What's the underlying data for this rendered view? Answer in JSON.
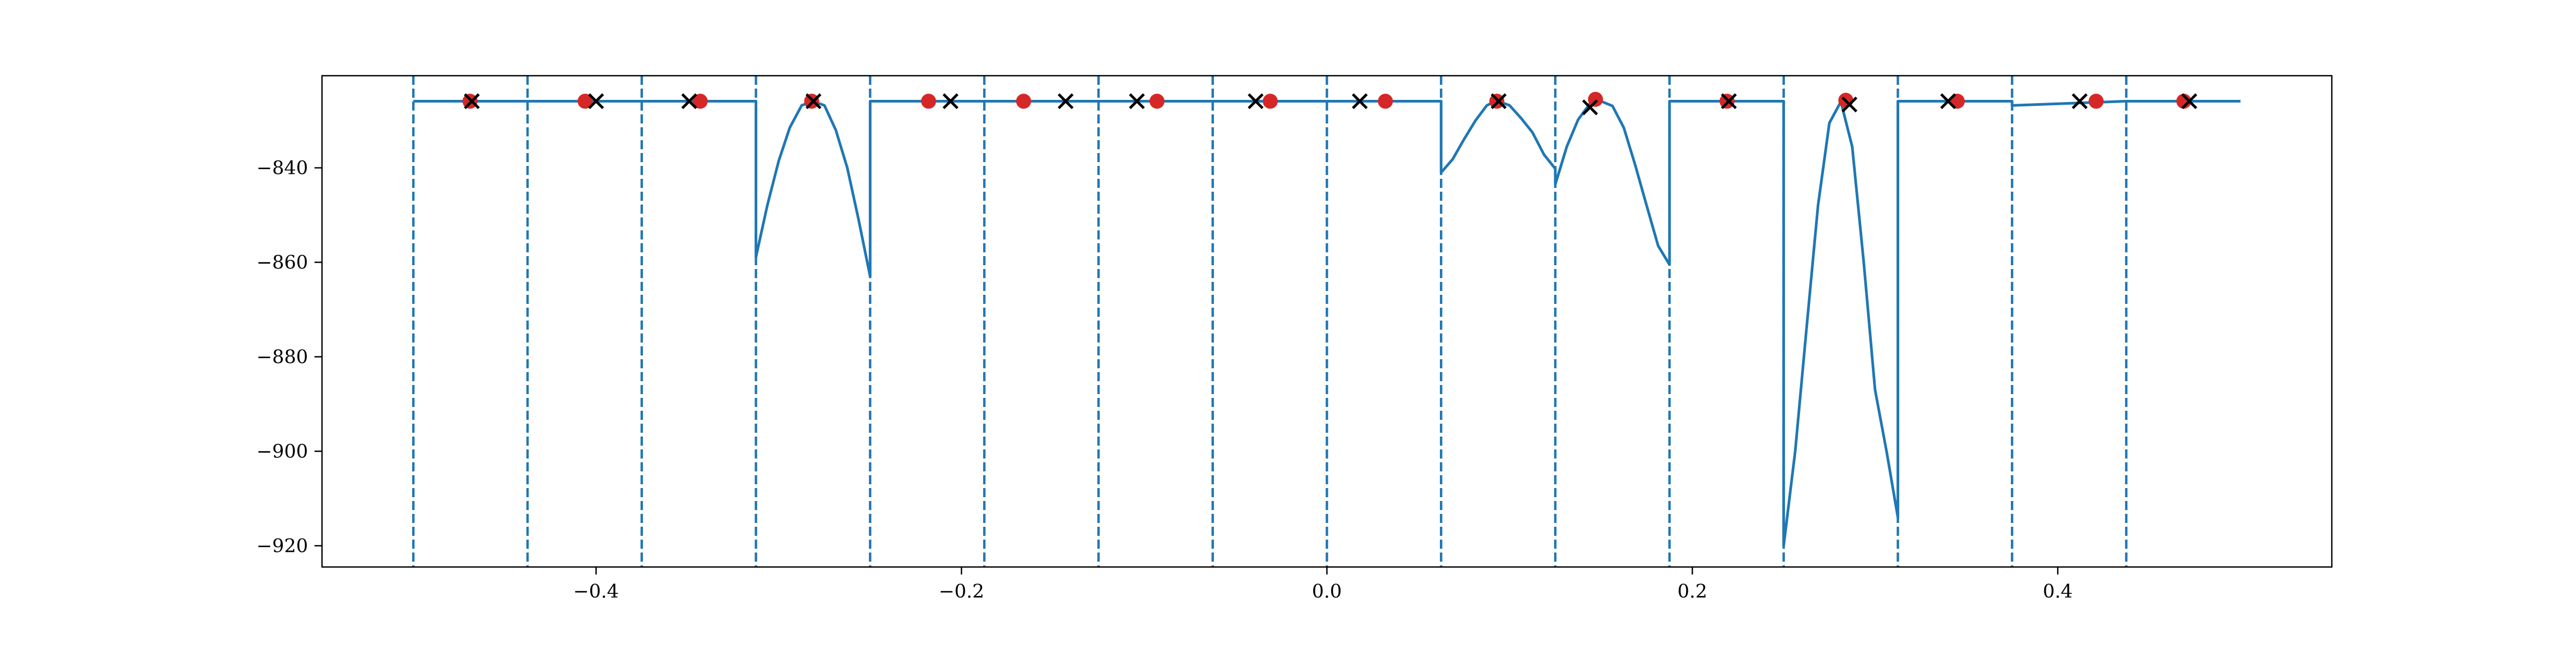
{
  "chart_data": {
    "type": "line",
    "title": "",
    "xlabel": "",
    "ylabel": "",
    "xlim": [
      -0.55,
      0.55
    ],
    "ylim": [
      -924.5,
      -820.5
    ],
    "grid": false,
    "legend": "none",
    "x_ticks": [
      {
        "value": -0.4,
        "label": "−0.4"
      },
      {
        "value": -0.2,
        "label": "−0.2"
      },
      {
        "value": 0.0,
        "label": "0.0"
      },
      {
        "value": 0.2,
        "label": "0.2"
      },
      {
        "value": 0.4,
        "label": "0.4"
      }
    ],
    "y_ticks": [
      {
        "value": -840,
        "label": "−840"
      },
      {
        "value": -860,
        "label": "−860"
      },
      {
        "value": -880,
        "label": "−880"
      },
      {
        "value": -900,
        "label": "−900"
      },
      {
        "value": -920,
        "label": "−920"
      }
    ],
    "boundaries": [
      -0.5,
      -0.4375,
      -0.375,
      -0.3125,
      -0.25,
      -0.1875,
      -0.125,
      -0.0625,
      0.0,
      0.0625,
      0.125,
      0.1875,
      0.25,
      0.3125,
      0.375,
      0.4375
    ],
    "series": [
      {
        "kind": "line",
        "color": "#1f77b4",
        "points": [
          [
            -0.5,
            -825.9
          ],
          [
            -0.3125,
            -825.9
          ],
          [
            -0.3125,
            -858.9
          ],
          [
            -0.3063,
            -848
          ],
          [
            -0.3,
            -838.5
          ],
          [
            -0.294,
            -831.5
          ],
          [
            -0.2875,
            -826.8
          ],
          [
            -0.2813,
            -825.9
          ],
          [
            -0.275,
            -826.8
          ],
          [
            -0.2688,
            -832
          ],
          [
            -0.2625,
            -840
          ],
          [
            -0.2563,
            -851
          ],
          [
            -0.25,
            -863
          ],
          [
            -0.25,
            -825.9
          ],
          [
            0.0625,
            -825.9
          ],
          [
            0.0625,
            -841
          ],
          [
            0.0688,
            -838.2
          ],
          [
            0.075,
            -834
          ],
          [
            0.0813,
            -830
          ],
          [
            0.0875,
            -826.8
          ],
          [
            0.093,
            -825.8
          ],
          [
            0.1,
            -826.8
          ],
          [
            0.1063,
            -829.5
          ],
          [
            0.1125,
            -832.5
          ],
          [
            0.1188,
            -837.2
          ],
          [
            0.125,
            -840.2
          ],
          [
            0.125,
            -843.5
          ],
          [
            0.1313,
            -835.5
          ],
          [
            0.1375,
            -829.8
          ],
          [
            0.1438,
            -826.5
          ],
          [
            0.15,
            -825.9
          ],
          [
            0.1563,
            -826.9
          ],
          [
            0.1625,
            -831.5
          ],
          [
            0.1688,
            -839.5
          ],
          [
            0.175,
            -848
          ],
          [
            0.1813,
            -856.5
          ],
          [
            0.1875,
            -860.5
          ],
          [
            0.1875,
            -825.9
          ],
          [
            0.25,
            -825.9
          ],
          [
            0.25,
            -920
          ],
          [
            0.2563,
            -900
          ],
          [
            0.2625,
            -874
          ],
          [
            0.2688,
            -848
          ],
          [
            0.275,
            -830.5
          ],
          [
            0.2813,
            -826
          ],
          [
            0.2875,
            -835.5
          ],
          [
            0.2938,
            -860
          ],
          [
            0.3,
            -887
          ],
          [
            0.3063,
            -900
          ],
          [
            0.3125,
            -914
          ],
          [
            0.3125,
            -825.9
          ],
          [
            0.375,
            -825.9
          ],
          [
            0.375,
            -826.8
          ],
          [
            0.4375,
            -825.9
          ],
          [
            0.5,
            -825.9
          ]
        ]
      },
      {
        "kind": "scatter",
        "marker": "circle",
        "color": "#d62728",
        "x": [
          -0.469,
          -0.406,
          -0.343,
          -0.282,
          -0.218,
          -0.166,
          -0.093,
          -0.031,
          0.032,
          0.093,
          0.147,
          0.219,
          0.284,
          0.345,
          0.421,
          0.469
        ],
        "y": [
          -825.9,
          -825.9,
          -825.9,
          -825.9,
          -825.9,
          -825.9,
          -825.9,
          -825.9,
          -825.9,
          -825.9,
          -825.5,
          -825.9,
          -825.7,
          -825.9,
          -825.9,
          -825.9
        ]
      },
      {
        "kind": "scatter",
        "marker": "x",
        "color": "#000000",
        "x": [
          -0.468,
          -0.4,
          -0.349,
          -0.281,
          -0.206,
          -0.143,
          -0.104,
          -0.039,
          0.018,
          0.094,
          0.144,
          0.22,
          0.286,
          0.34,
          0.412,
          0.472
        ],
        "y": [
          -825.9,
          -825.9,
          -825.9,
          -825.9,
          -825.9,
          -825.9,
          -825.9,
          -825.9,
          -825.9,
          -825.9,
          -827.2,
          -825.9,
          -826.6,
          -825.9,
          -825.9,
          -825.9
        ]
      }
    ]
  }
}
